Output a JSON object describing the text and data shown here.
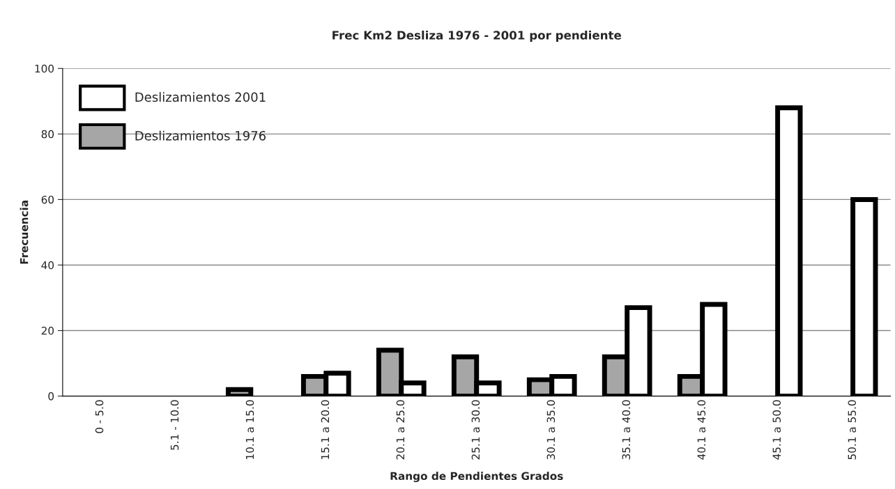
{
  "chart_data": {
    "type": "bar",
    "title": "Frec Km2 Desliza 1976 - 2001 por pendiente",
    "xlabel": "Rango de Pendientes Grados",
    "ylabel": "Frecuencia",
    "categories": [
      "0 - 5.0",
      "5.1 - 10.0",
      "10.1 a 15.0",
      "15.1 a 20.0",
      "20.1 a 25.0",
      "25.1 a 30.0",
      "30.1 a 35.0",
      "35.1 a 40.0",
      "40.1 a 45.0",
      "45.1 a 50.0",
      "50.1 a 55.0"
    ],
    "series": [
      {
        "name": "Deslizamientos 1976",
        "color": "#a6a6a6",
        "values": [
          0,
          0,
          2,
          6,
          14,
          12,
          5,
          12,
          6,
          0,
          0
        ]
      },
      {
        "name": "Deslizamientos 2001",
        "color": "#ffffff",
        "values": [
          0,
          0,
          0,
          7,
          4,
          4,
          6,
          27,
          28,
          88,
          60
        ]
      }
    ],
    "ylim": [
      0,
      100
    ],
    "yticks": [
      0,
      20,
      40,
      60,
      80,
      100
    ],
    "grid": "y",
    "legend": "top left"
  }
}
